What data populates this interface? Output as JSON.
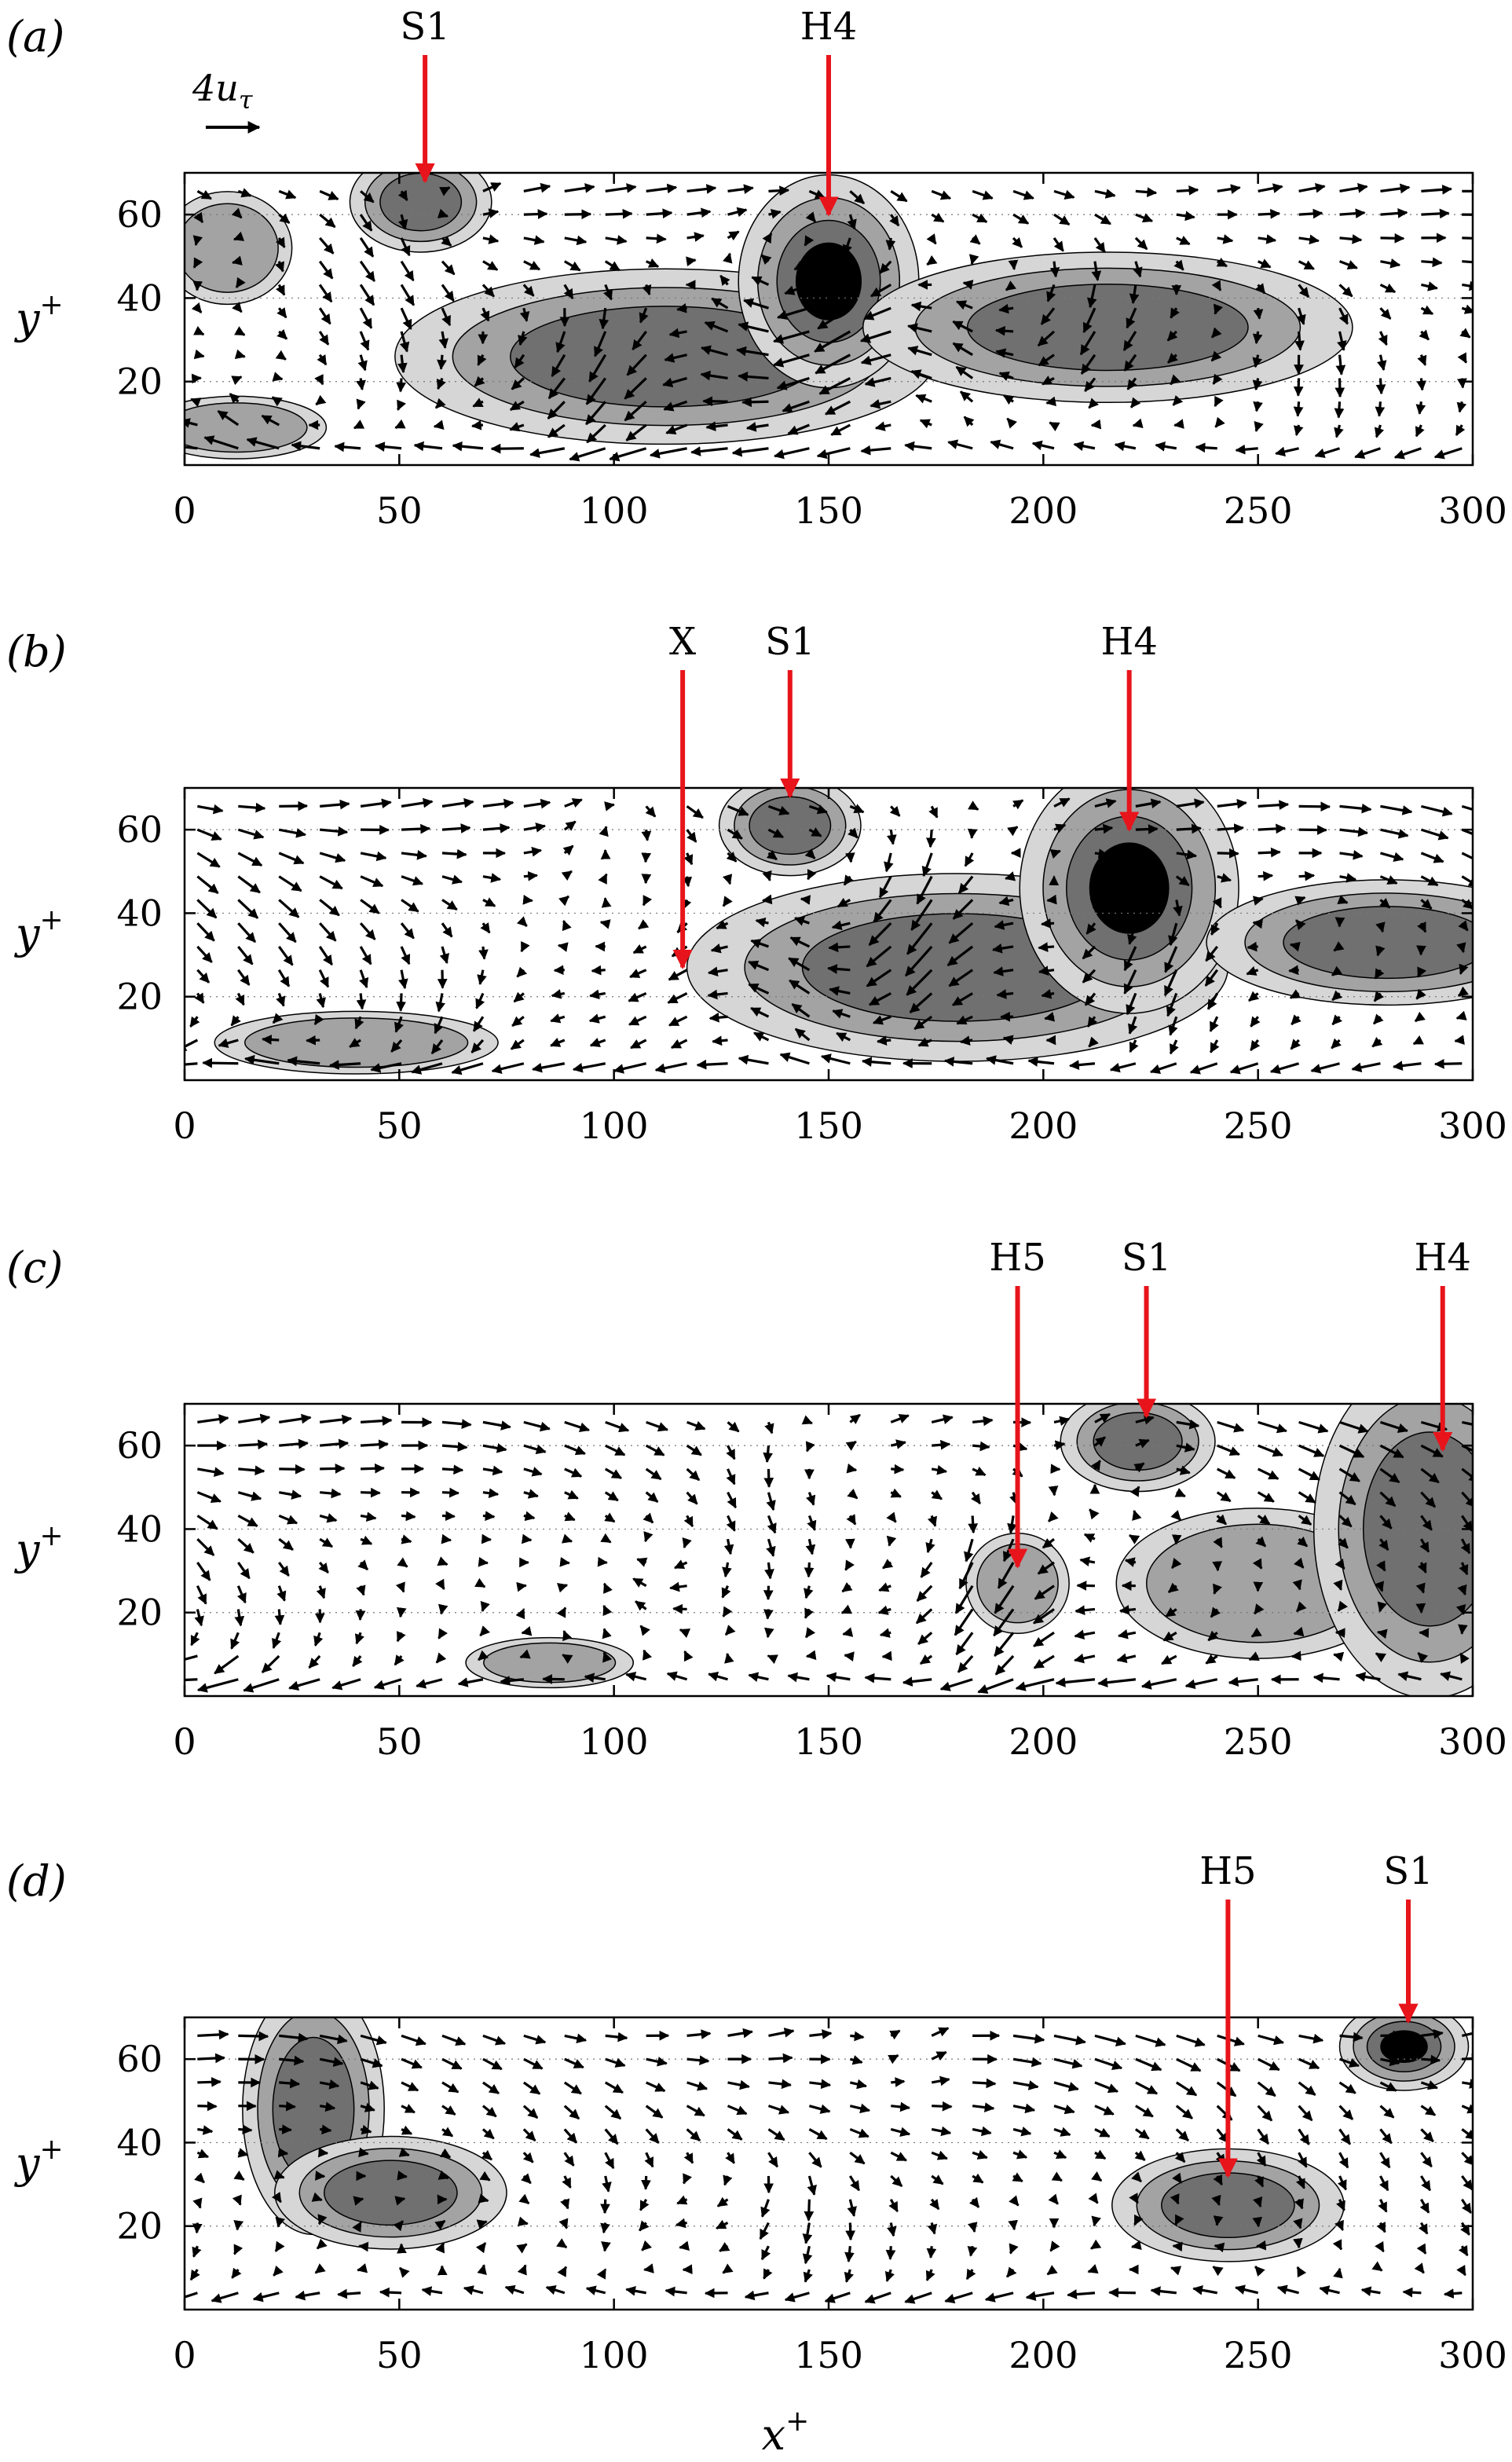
{
  "figure": {
    "x_axis_label": "x",
    "x_axis_label_sup": "+",
    "y_axis_label": "y",
    "y_axis_label_sup": "+",
    "scale_label": "4u",
    "scale_label_sub": "τ",
    "colors": {
      "arrow": "#000000",
      "marker": "#e8141b",
      "contour_levels": [
        "#d6d6d6",
        "#a3a3a3",
        "#707070",
        "#000000"
      ]
    }
  },
  "chart_data": [
    {
      "type": "vector-field-contour",
      "panel_label": "(a)",
      "xlim": [
        0,
        300
      ],
      "ylim": [
        0,
        70
      ],
      "xticks": [
        0,
        50,
        100,
        150,
        200,
        250,
        300
      ],
      "yticks": [
        20,
        40,
        60
      ],
      "markers": [
        {
          "label": "S1",
          "x": 56,
          "y_tip": 68
        },
        {
          "label": "H4",
          "x": 150,
          "y_tip": 60
        }
      ],
      "blobs": [
        {
          "x": 112,
          "y": 26,
          "rx": 42,
          "ry": 14,
          "level": 3
        },
        {
          "x": 150,
          "y": 44,
          "rx": 14,
          "ry": 17,
          "level": 4
        },
        {
          "x": 215,
          "y": 33,
          "rx": 38,
          "ry": 12,
          "level": 3
        },
        {
          "x": 55,
          "y": 63,
          "rx": 11,
          "ry": 8,
          "level": 3
        },
        {
          "x": 10,
          "y": 52,
          "rx": 10,
          "ry": 9,
          "level": 2
        },
        {
          "x": 12,
          "y": 9,
          "rx": 14,
          "ry": 5,
          "level": 2
        }
      ]
    },
    {
      "type": "vector-field-contour",
      "panel_label": "(b)",
      "xlim": [
        0,
        300
      ],
      "ylim": [
        0,
        70
      ],
      "xticks": [
        0,
        50,
        100,
        150,
        200,
        250,
        300
      ],
      "yticks": [
        20,
        40,
        60
      ],
      "markers": [
        {
          "label": "X",
          "x": 116,
          "y_tip": 27
        },
        {
          "label": "S1",
          "x": 141,
          "y_tip": 68
        },
        {
          "label": "H4",
          "x": 220,
          "y_tip": 60
        }
      ],
      "blobs": [
        {
          "x": 180,
          "y": 27,
          "rx": 42,
          "ry": 15,
          "level": 3
        },
        {
          "x": 220,
          "y": 46,
          "rx": 17,
          "ry": 20,
          "level": 4
        },
        {
          "x": 280,
          "y": 33,
          "rx": 28,
          "ry": 10,
          "level": 3
        },
        {
          "x": 141,
          "y": 61,
          "rx": 11,
          "ry": 8,
          "level": 3
        },
        {
          "x": 40,
          "y": 9,
          "rx": 22,
          "ry": 5,
          "level": 2
        }
      ]
    },
    {
      "type": "vector-field-contour",
      "panel_label": "(c)",
      "xlim": [
        0,
        300
      ],
      "ylim": [
        0,
        70
      ],
      "xticks": [
        0,
        50,
        100,
        150,
        200,
        250,
        300
      ],
      "yticks": [
        20,
        40,
        60
      ],
      "markers": [
        {
          "label": "H5",
          "x": 194,
          "y_tip": 31
        },
        {
          "label": "S1",
          "x": 224,
          "y_tip": 67
        },
        {
          "label": "H4",
          "x": 293,
          "y_tip": 59
        }
      ],
      "blobs": [
        {
          "x": 194,
          "y": 27,
          "rx": 8,
          "ry": 8,
          "level": 2
        },
        {
          "x": 222,
          "y": 61,
          "rx": 12,
          "ry": 8,
          "level": 3
        },
        {
          "x": 250,
          "y": 27,
          "rx": 22,
          "ry": 12,
          "level": 2
        },
        {
          "x": 290,
          "y": 40,
          "rx": 18,
          "ry": 27,
          "level": 3
        },
        {
          "x": 85,
          "y": 8,
          "rx": 13,
          "ry": 4,
          "level": 2
        }
      ]
    },
    {
      "type": "vector-field-contour",
      "panel_label": "(d)",
      "xlim": [
        0,
        300
      ],
      "ylim": [
        0,
        70
      ],
      "xticks": [
        0,
        50,
        100,
        150,
        200,
        250,
        300
      ],
      "yticks": [
        20,
        40,
        60
      ],
      "markers": [
        {
          "label": "H5",
          "x": 243,
          "y_tip": 32
        },
        {
          "label": "S1",
          "x": 285,
          "y_tip": 69
        }
      ],
      "blobs": [
        {
          "x": 30,
          "y": 48,
          "rx": 11,
          "ry": 20,
          "level": 3
        },
        {
          "x": 48,
          "y": 28,
          "rx": 18,
          "ry": 9,
          "level": 3
        },
        {
          "x": 243,
          "y": 25,
          "rx": 18,
          "ry": 9,
          "level": 3
        },
        {
          "x": 284,
          "y": 63,
          "rx": 10,
          "ry": 7,
          "level": 4
        }
      ]
    }
  ]
}
